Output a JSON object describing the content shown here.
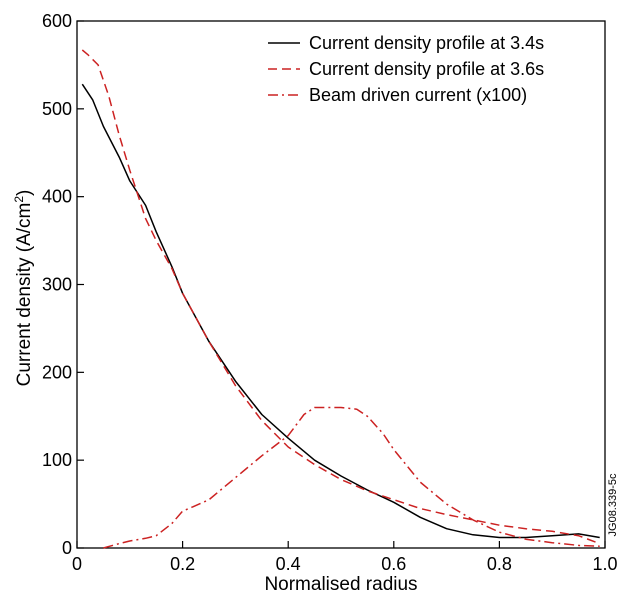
{
  "chart_data": {
    "type": "line",
    "xlabel": "Normalised radius",
    "ylabel_main": "Current density (A/cm",
    "ylabel_sup": "2",
    "ylabel_close": ")",
    "xlim": [
      0,
      1.0
    ],
    "ylim": [
      0,
      600
    ],
    "x_ticks": [
      0,
      0.2,
      0.4,
      0.6,
      0.8,
      1.0
    ],
    "x_tick_labels": [
      "0",
      "0.2",
      "0.4",
      "0.6",
      "0.8",
      "1.0"
    ],
    "y_ticks": [
      0,
      100,
      200,
      300,
      400,
      500,
      600
    ],
    "y_tick_labels": [
      "0",
      "100",
      "200",
      "300",
      "400",
      "500",
      "600"
    ],
    "grid": false,
    "legend_position": "top-right",
    "credit": "JG08.339-5c",
    "series": [
      {
        "name": "Current density profile at 3.4s",
        "color": "#000000",
        "dash": "solid",
        "points": [
          [
            0.01,
            528
          ],
          [
            0.03,
            510
          ],
          [
            0.05,
            480
          ],
          [
            0.08,
            445
          ],
          [
            0.1,
            418
          ],
          [
            0.13,
            390
          ],
          [
            0.15,
            360
          ],
          [
            0.18,
            320
          ],
          [
            0.2,
            290
          ],
          [
            0.25,
            235
          ],
          [
            0.3,
            190
          ],
          [
            0.35,
            152
          ],
          [
            0.4,
            125
          ],
          [
            0.45,
            100
          ],
          [
            0.5,
            82
          ],
          [
            0.55,
            66
          ],
          [
            0.6,
            52
          ],
          [
            0.65,
            35
          ],
          [
            0.7,
            22
          ],
          [
            0.75,
            15
          ],
          [
            0.8,
            12
          ],
          [
            0.85,
            12
          ],
          [
            0.9,
            14
          ],
          [
            0.95,
            16
          ],
          [
            0.99,
            12
          ]
        ]
      },
      {
        "name": "Current density profile at 3.6s",
        "color": "#cc2222",
        "dash": "dashed",
        "points": [
          [
            0.01,
            567
          ],
          [
            0.02,
            562
          ],
          [
            0.04,
            550
          ],
          [
            0.06,
            515
          ],
          [
            0.08,
            470
          ],
          [
            0.1,
            430
          ],
          [
            0.13,
            375
          ],
          [
            0.15,
            350
          ],
          [
            0.18,
            318
          ],
          [
            0.2,
            290
          ],
          [
            0.25,
            235
          ],
          [
            0.3,
            185
          ],
          [
            0.35,
            145
          ],
          [
            0.4,
            115
          ],
          [
            0.45,
            95
          ],
          [
            0.5,
            78
          ],
          [
            0.55,
            65
          ],
          [
            0.6,
            55
          ],
          [
            0.65,
            45
          ],
          [
            0.7,
            38
          ],
          [
            0.75,
            32
          ],
          [
            0.8,
            26
          ],
          [
            0.85,
            22
          ],
          [
            0.9,
            19
          ],
          [
            0.95,
            14
          ],
          [
            0.99,
            5
          ]
        ]
      },
      {
        "name": "Beam driven current (x100)",
        "color": "#cc2222",
        "dash": "dashdot",
        "points": [
          [
            0.05,
            0
          ],
          [
            0.08,
            5
          ],
          [
            0.1,
            8
          ],
          [
            0.13,
            11
          ],
          [
            0.15,
            14
          ],
          [
            0.18,
            28
          ],
          [
            0.2,
            42
          ],
          [
            0.22,
            47
          ],
          [
            0.25,
            55
          ],
          [
            0.3,
            80
          ],
          [
            0.35,
            105
          ],
          [
            0.4,
            128
          ],
          [
            0.43,
            152
          ],
          [
            0.45,
            160
          ],
          [
            0.5,
            160
          ],
          [
            0.53,
            158
          ],
          [
            0.55,
            150
          ],
          [
            0.58,
            130
          ],
          [
            0.6,
            112
          ],
          [
            0.65,
            75
          ],
          [
            0.7,
            50
          ],
          [
            0.75,
            32
          ],
          [
            0.8,
            18
          ],
          [
            0.85,
            10
          ],
          [
            0.9,
            6
          ],
          [
            0.95,
            3
          ],
          [
            0.99,
            2
          ]
        ]
      }
    ]
  }
}
